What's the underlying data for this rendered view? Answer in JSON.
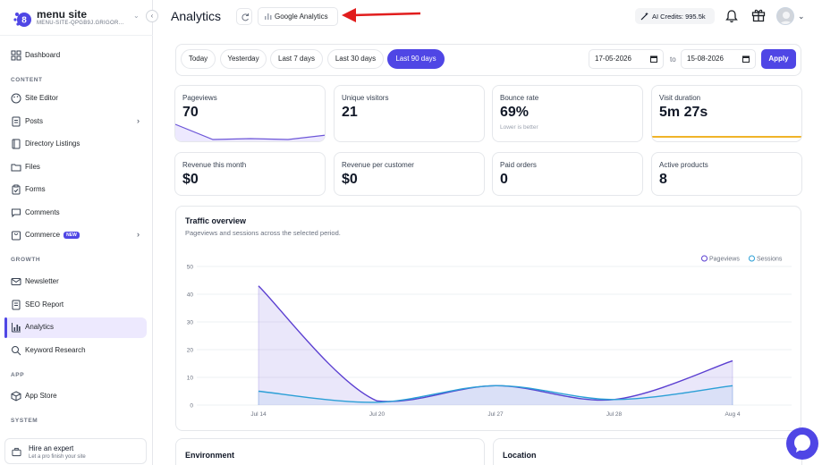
{
  "brand": {
    "name": "menu site",
    "subdomain": "MENU-SITE-QPGB9J.GRIGOR..."
  },
  "nav": {
    "dashboard": "Dashboard",
    "content_section": "CONTENT",
    "site_editor": "Site Editor",
    "posts": "Posts",
    "directory": "Directory Listings",
    "files": "Files",
    "forms": "Forms",
    "comments": "Comments",
    "commerce": "Commerce",
    "commerce_badge": "NEW",
    "growth_section": "GROWTH",
    "newsletter": "Newsletter",
    "seo": "SEO Report",
    "analytics": "Analytics",
    "keyword": "Keyword Research",
    "app_section": "APP",
    "app_store": "App Store",
    "system_section": "SYSTEM"
  },
  "hire": {
    "title": "Hire an expert",
    "subtitle": "Let a pro finish your site"
  },
  "header": {
    "title": "Analytics",
    "ga_button": "Google Analytics",
    "credits": "AI Credits: 995.5k"
  },
  "range": {
    "today": "Today",
    "yesterday": "Yesterday",
    "last7": "Last 7 days",
    "last30": "Last 30 days",
    "last90": "Last 90 days",
    "from": "17-05-2026",
    "to_label": "to",
    "to": "15-08-2026",
    "apply": "Apply"
  },
  "stats": {
    "pageviews": {
      "label": "Pageviews",
      "value": "70"
    },
    "visitors": {
      "label": "Unique visitors",
      "value": "21"
    },
    "bounce": {
      "label": "Bounce rate",
      "value": "69%",
      "sub": "Lower is better"
    },
    "duration": {
      "label": "Visit duration",
      "value": "5m 27s"
    },
    "revenue": {
      "label": "Revenue this month",
      "value": "$0"
    },
    "rpc": {
      "label": "Revenue per customer",
      "value": "$0"
    },
    "orders": {
      "label": "Paid orders",
      "value": "0"
    },
    "products": {
      "label": "Active products",
      "value": "8"
    }
  },
  "traffic": {
    "title": "Traffic overview",
    "subtitle": "Pageviews and sessions across the selected period."
  },
  "chart_data": {
    "type": "area",
    "title": "Traffic overview",
    "ylim": [
      0,
      50
    ],
    "yticks": [
      0,
      10,
      20,
      30,
      40,
      50
    ],
    "x_ticks": [
      "Jul 14",
      "Jul 20",
      "Jul 27",
      "Jul 28",
      "Aug 4"
    ],
    "grid": true,
    "legend": "top-right",
    "series": [
      {
        "name": "Pageviews",
        "color": "#5b3fd1",
        "values": [
          43,
          1.5,
          7,
          2,
          16
        ]
      },
      {
        "name": "Sessions",
        "color": "#2b9fd6",
        "values": [
          5,
          1,
          7,
          2,
          7
        ]
      }
    ]
  },
  "bottom": {
    "environment": "Environment",
    "location": "Location"
  },
  "colors": {
    "accent": "#4f46e5",
    "accent_light": "#ede9fe",
    "orange": "#f0b429"
  }
}
